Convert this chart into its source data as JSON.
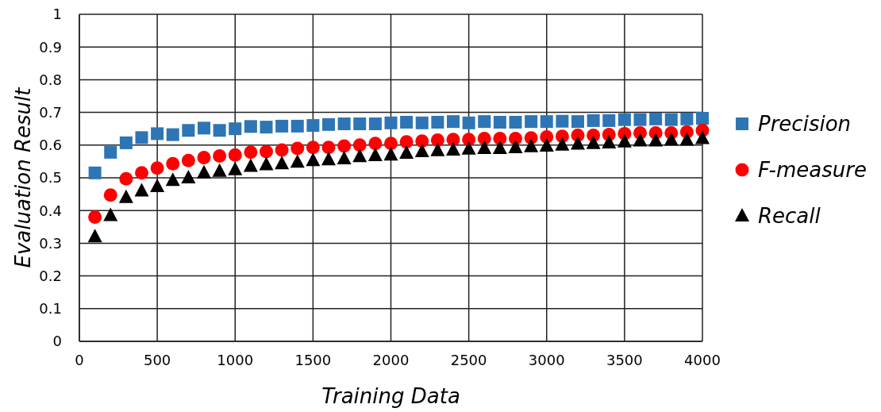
{
  "chart_data": {
    "type": "scatter",
    "xlabel": "Training Data",
    "ylabel": "Evaluation Result",
    "x": [
      100,
      200,
      300,
      400,
      500,
      600,
      700,
      800,
      900,
      1000,
      1100,
      1200,
      1300,
      1400,
      1500,
      1600,
      1700,
      1800,
      1900,
      2000,
      2100,
      2200,
      2300,
      2400,
      2500,
      2600,
      2700,
      2800,
      2900,
      3000,
      3100,
      3200,
      3300,
      3400,
      3500,
      3600,
      3700,
      3800,
      3900,
      4000
    ],
    "series": [
      {
        "name": "Precision",
        "color": "#2e75b6",
        "marker": "square",
        "values": [
          0.515,
          0.578,
          0.607,
          0.623,
          0.635,
          0.632,
          0.645,
          0.652,
          0.645,
          0.65,
          0.657,
          0.655,
          0.658,
          0.658,
          0.66,
          0.663,
          0.665,
          0.665,
          0.665,
          0.668,
          0.67,
          0.668,
          0.67,
          0.672,
          0.668,
          0.672,
          0.67,
          0.67,
          0.672,
          0.672,
          0.673,
          0.672,
          0.675,
          0.675,
          0.678,
          0.678,
          0.68,
          0.678,
          0.68,
          0.682
        ]
      },
      {
        "name": "F-measure",
        "color": "#ff0000",
        "marker": "circle",
        "values": [
          0.38,
          0.447,
          0.497,
          0.515,
          0.53,
          0.543,
          0.553,
          0.562,
          0.567,
          0.57,
          0.578,
          0.58,
          0.585,
          0.59,
          0.593,
          0.593,
          0.597,
          0.6,
          0.605,
          0.605,
          0.61,
          0.612,
          0.615,
          0.617,
          0.617,
          0.62,
          0.62,
          0.62,
          0.622,
          0.625,
          0.627,
          0.63,
          0.63,
          0.632,
          0.635,
          0.637,
          0.637,
          0.637,
          0.64,
          0.645
        ]
      },
      {
        "name": "Recall",
        "color": "#000000",
        "marker": "triangle",
        "values": [
          0.32,
          0.385,
          0.44,
          0.46,
          0.473,
          0.492,
          0.5,
          0.515,
          0.52,
          0.525,
          0.535,
          0.54,
          0.543,
          0.548,
          0.553,
          0.555,
          0.558,
          0.565,
          0.568,
          0.57,
          0.575,
          0.58,
          0.583,
          0.585,
          0.588,
          0.59,
          0.59,
          0.592,
          0.595,
          0.597,
          0.6,
          0.603,
          0.605,
          0.607,
          0.61,
          0.613,
          0.613,
          0.615,
          0.615,
          0.62
        ]
      }
    ],
    "xlim": [
      0,
      4000
    ],
    "xticks": [
      0,
      500,
      1000,
      1500,
      2000,
      2500,
      3000,
      3500,
      4000
    ],
    "ylim": [
      0,
      1
    ],
    "yticks": [
      0,
      0.1,
      0.2,
      0.3,
      0.4,
      0.5,
      0.6,
      0.7,
      0.8,
      0.9,
      1
    ],
    "grid": true,
    "legend": "right"
  }
}
